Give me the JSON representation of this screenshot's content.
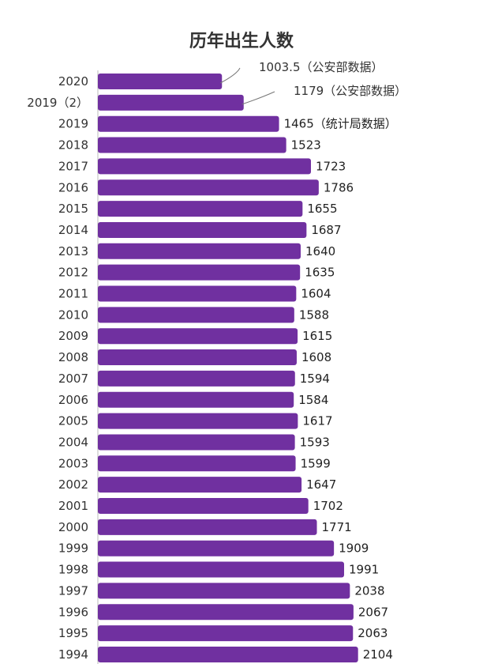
{
  "chart_data": {
    "type": "bar",
    "orientation": "horizontal",
    "title": "历年出生人数",
    "xlabel": "",
    "ylabel": "",
    "xlim": [
      0,
      2200
    ],
    "grid": false,
    "legend": "none",
    "bar_color": "#7030a0",
    "categories": [
      "2020",
      "2019（2）",
      "2019",
      "2018",
      "2017",
      "2016",
      "2015",
      "2014",
      "2013",
      "2012",
      "2011",
      "2010",
      "2009",
      "2008",
      "2007",
      "2006",
      "2005",
      "2004",
      "2003",
      "2002",
      "2001",
      "2000",
      "1999",
      "1998",
      "1997",
      "1996",
      "1995",
      "1994"
    ],
    "values": [
      1003.5,
      1179,
      1465,
      1523,
      1723,
      1786,
      1655,
      1687,
      1640,
      1635,
      1604,
      1588,
      1615,
      1608,
      1594,
      1584,
      1617,
      1593,
      1599,
      1647,
      1702,
      1771,
      1909,
      1991,
      2038,
      2067,
      2063,
      2104
    ],
    "value_labels": [
      "1003.5（公安部数据）",
      "1179（公安部数据）",
      "1465（统计局数据）",
      "1523",
      "1723",
      "1786",
      "1655",
      "1687",
      "1640",
      "1635",
      "1604",
      "1588",
      "1615",
      "1608",
      "1594",
      "1584",
      "1617",
      "1593",
      "1599",
      "1647",
      "1702",
      "1771",
      "1909",
      "1991",
      "2038",
      "2067",
      "2063",
      "2104"
    ]
  }
}
